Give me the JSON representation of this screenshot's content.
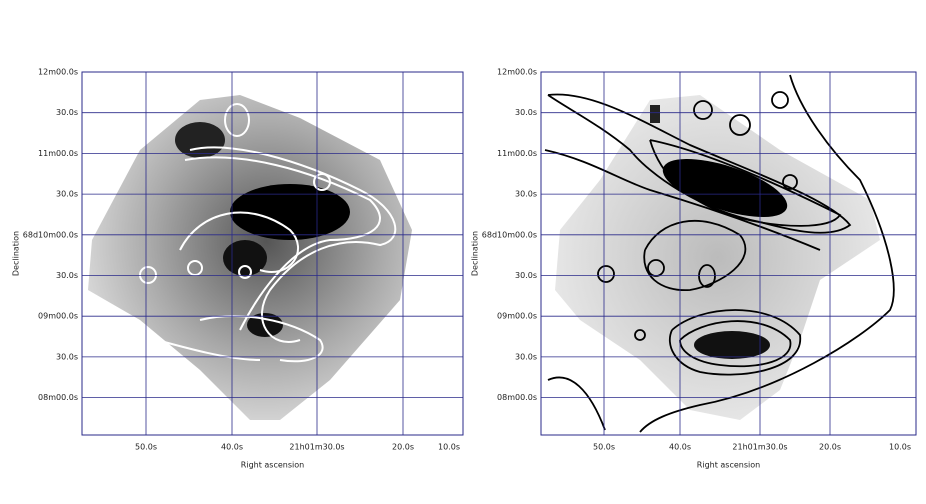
{
  "panels": [
    {
      "ylabel": "Declination",
      "xlabel": "Right ascension",
      "yticks": [
        "12m00.0s",
        "30.0s",
        "11m00.0s",
        "30.0s",
        "68d10m00.0s",
        "30.0s",
        "09m00.0s",
        "30.0s",
        "08m00.0s"
      ],
      "xticks": [
        "50.0s",
        "40.0s",
        "21h01m30.0s",
        "20.0s",
        "10.0s"
      ]
    },
    {
      "ylabel": "Declination",
      "xlabel": "Right ascension",
      "yticks": [
        "12m00.0s",
        "30.0s",
        "11m00.0s",
        "30.0s",
        "68d10m00.0s",
        "30.0s",
        "09m00.0s",
        "30.0s",
        "08m00.0s"
      ],
      "xticks": [
        "50.0s",
        "40.0s",
        "21h01m30.0s",
        "20.0s",
        "10.0s"
      ]
    }
  ]
}
